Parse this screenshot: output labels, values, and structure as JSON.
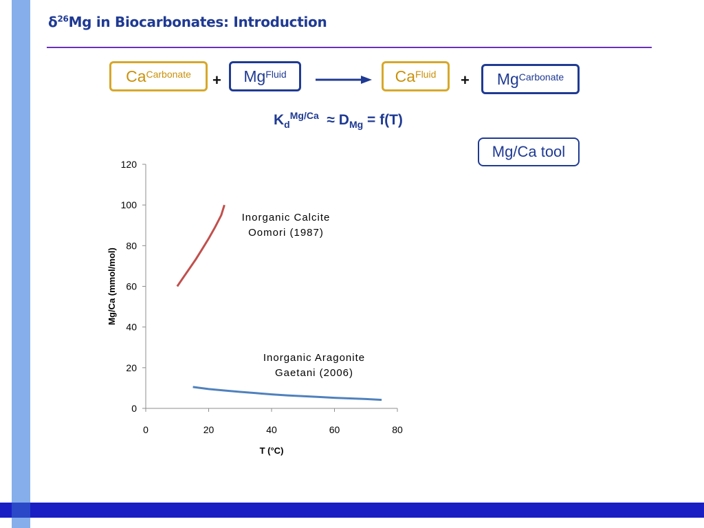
{
  "slide": {
    "title_prefix": "δ",
    "title_sup": "26",
    "title_rest": "Mg in Biocarbonates: Introduction",
    "colors": {
      "accent": "#1f3a93",
      "gold": "#d6a72a",
      "rule": "#6a2fb8",
      "sidebar": "#86aeea",
      "footer": "#1a1fc4"
    }
  },
  "reaction": {
    "ca_carbonate": {
      "base": "Ca",
      "sup": "Carbonate"
    },
    "plus1": "+",
    "mg_fluid": {
      "base": "Mg",
      "sup": "Fluid"
    },
    "ca_fluid": {
      "base": "Ca",
      "sup": "Fluid"
    },
    "plus2": "+",
    "mg_carbonate": {
      "base": "Mg",
      "sup": "Carbonate"
    }
  },
  "equation": {
    "k": "K",
    "k_sub": "d",
    "k_sup": "Mg/Ca",
    "approx_d": "≈ D",
    "d_sub": "Mg",
    "rhs": "= f(T)"
  },
  "tool_label": "Mg/Ca tool",
  "chart_data": {
    "type": "line",
    "xlabel": "T (°C)",
    "ylabel": "Mg/Ca (mmol/mol)",
    "xlim": [
      0,
      80
    ],
    "ylim": [
      0,
      120
    ],
    "xticks": [
      0,
      20,
      40,
      60,
      80
    ],
    "yticks": [
      0,
      20,
      40,
      60,
      80,
      100,
      120
    ],
    "grid": false,
    "series": [
      {
        "name": "Inorganic Calcite Oomori (1987)",
        "label_lines": [
          "Inorganic  Calcite",
          "Oomori  (1987)"
        ],
        "color": "#c0504d",
        "x": [
          10,
          12,
          14,
          16,
          18,
          20,
          22,
          24,
          25
        ],
        "y": [
          60,
          64.5,
          69,
          73.5,
          78.5,
          83.5,
          89,
          95,
          100
        ]
      },
      {
        "name": "Inorganic Aragonite Gaetani (2006)",
        "label_lines": [
          "Inorganic  Aragonite",
          "Gaetani  (2006)"
        ],
        "color": "#4f81bd",
        "x": [
          15,
          20,
          25,
          30,
          35,
          40,
          45,
          50,
          55,
          60,
          65,
          70,
          75
        ],
        "y": [
          10.5,
          9.5,
          8.8,
          8.1,
          7.5,
          6.9,
          6.4,
          6.0,
          5.6,
          5.2,
          4.9,
          4.6,
          4.2
        ]
      }
    ]
  }
}
